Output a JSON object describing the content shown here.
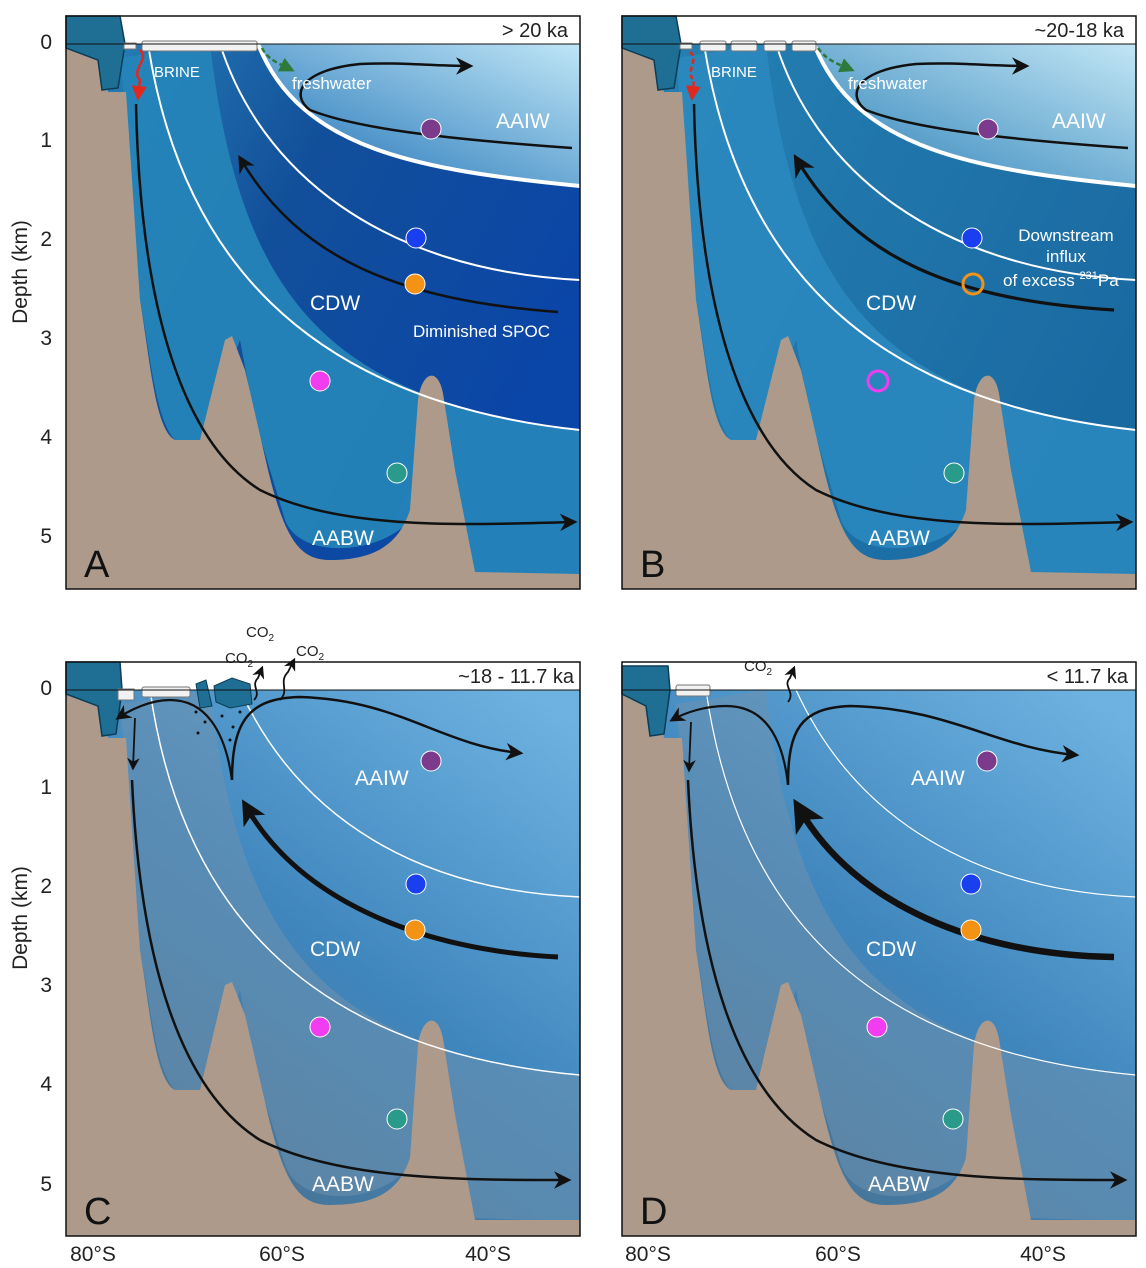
{
  "y_axis_label": "Depth (km)",
  "depth_ticks": [
    "0",
    "1",
    "2",
    "3",
    "4",
    "5"
  ],
  "lat_ticks": [
    "80°S",
    "60°S",
    "40°S"
  ],
  "co2_label": "CO",
  "co2_sub": "2",
  "colors": {
    "seafloor": "#ad9a8b",
    "ice_shelf": "#1f6f94",
    "arrow": "#111111",
    "brine_arrow": "#e0281e",
    "freshwater_arrow": "#2e7a3a",
    "tracer_purple": "#7b3a8c",
    "tracer_blue": "#1a3ff0",
    "tracer_orange": "#f39214",
    "tracer_magenta": "#f23cf0",
    "tracer_teal": "#2a9b8a"
  },
  "panels": [
    {
      "letter": "A",
      "age": "> 20 ka",
      "water_masses": [
        "AAIW",
        "CDW",
        "AABW"
      ],
      "brine_label": "BRINE",
      "freshwater_label": "freshwater",
      "notes": [
        "Diminished SPOC"
      ]
    },
    {
      "letter": "B",
      "age": "~20-18 ka",
      "water_masses": [
        "AAIW",
        "CDW",
        "AABW"
      ],
      "brine_label": "BRINE",
      "freshwater_label": "freshwater",
      "notes": [
        "Downstream",
        "influx",
        "of excess ",
        "231",
        "Pa"
      ]
    },
    {
      "letter": "C",
      "age": "~18 - 11.7 ka",
      "water_masses": [
        "AAIW",
        "CDW",
        "AABW"
      ]
    },
    {
      "letter": "D",
      "age": "< 11.7 ka",
      "water_masses": [
        "AAIW",
        "CDW",
        "AABW"
      ]
    }
  ]
}
